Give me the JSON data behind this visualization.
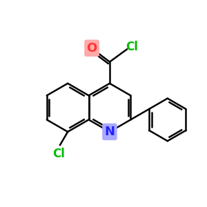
{
  "bg_color": "#ffffff",
  "bond_color": "#000000",
  "bond_width": 1.8,
  "dbo": 0.12,
  "atom_colors": {
    "O": "#ff3333",
    "Cl": "#00bb00",
    "N": "#2222ff"
  },
  "O_bg": "#ffaaaa",
  "N_bg": "#aaaaff",
  "figsize": [
    3.0,
    3.0
  ],
  "dpi": 100
}
